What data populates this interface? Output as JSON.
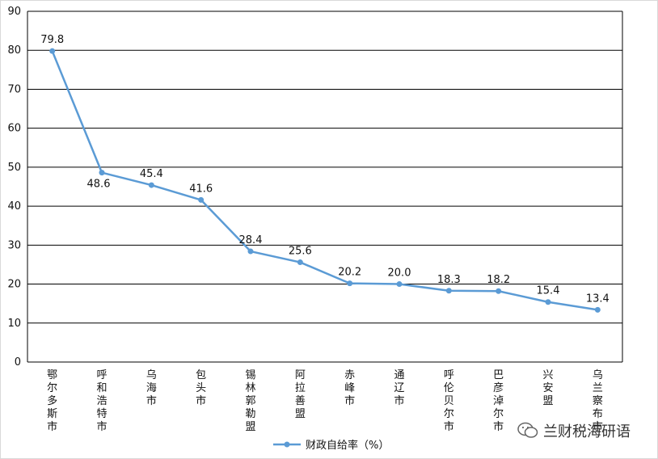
{
  "chart_data": {
    "type": "line",
    "categories": [
      "鄂尔多斯市",
      "呼和浩特市",
      "乌海市",
      "包头市",
      "锡林郭勒盟",
      "阿拉善盟",
      "赤峰市",
      "通辽市",
      "呼伦贝尔市",
      "巴彦淖尔市",
      "兴安盟",
      "乌兰察布市"
    ],
    "series": [
      {
        "name": "财政自给率（%）",
        "values": [
          79.8,
          48.6,
          45.4,
          41.6,
          28.4,
          25.6,
          20.2,
          20.0,
          18.3,
          18.2,
          15.4,
          13.4
        ],
        "labels": [
          "79.8",
          "48.6",
          "45.4",
          "41.6",
          "28.4",
          "25.6",
          "20.2",
          "20.0",
          "18.3",
          "18.2",
          "15.4",
          "13.4"
        ]
      }
    ],
    "ylim": [
      0,
      90
    ],
    "yticks": [
      0,
      10,
      20,
      30,
      40,
      50,
      60,
      70,
      80,
      90
    ],
    "grid": true,
    "legend": "bottom",
    "colors": {
      "line": "#5b9bd5",
      "grid": "#000000"
    }
  },
  "watermark": {
    "text": "兰财税海研语",
    "icon": "wechat-icon"
  }
}
